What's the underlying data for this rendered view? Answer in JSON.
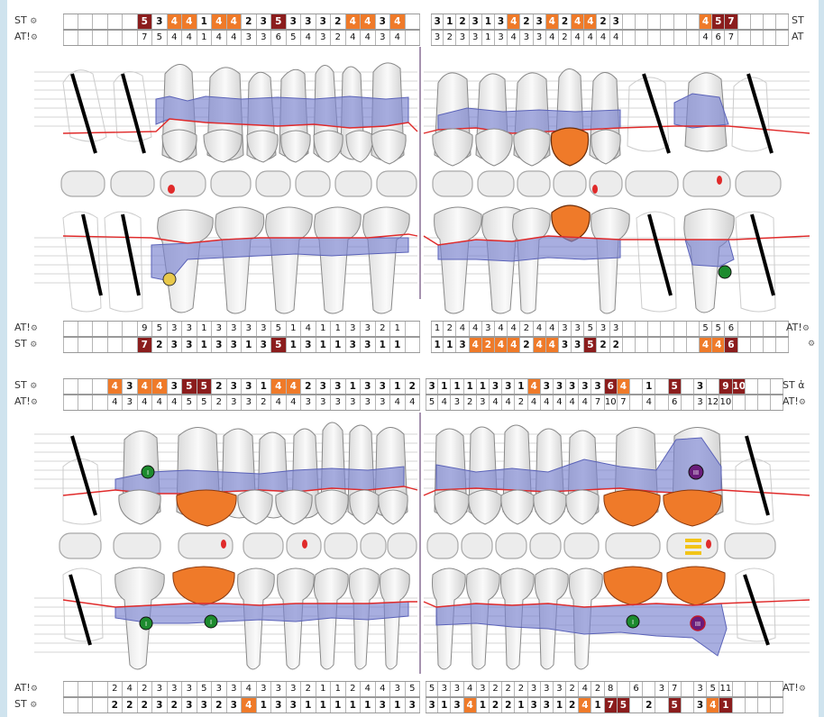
{
  "labels": {
    "st": "ST",
    "at": "AT!",
    "at_plain": "AT",
    "st_cut": "ST ἀ",
    "gear": "⚙"
  },
  "icons": {
    "settings": "gear-icon",
    "implant_markers": [
      "I",
      "III"
    ]
  },
  "colors": {
    "orange": "#ef7a29",
    "dark_red": "#8b1d1d",
    "gum_fill": "#7a82d0",
    "gum_line": "#e02a2a",
    "tooth_fill": "#efefef",
    "implant_green": "#1d8b2e",
    "purple": "#6a1c7a",
    "sidebar": "#cfe3ee"
  },
  "chart1": {
    "top_st": {
      "left": [
        [
          "",
          ""
        ],
        [
          "",
          ""
        ],
        [
          "",
          ""
        ],
        [
          "",
          ""
        ],
        [
          "",
          ""
        ],
        [
          "5",
          "d"
        ],
        [
          "3",
          ""
        ],
        [
          "4",
          "o"
        ],
        [
          "4",
          "o"
        ],
        [
          "1",
          ""
        ],
        [
          "4",
          "o"
        ],
        [
          "4",
          "o"
        ],
        [
          "2",
          ""
        ],
        [
          "3",
          ""
        ],
        [
          "5",
          "d"
        ],
        [
          "3",
          ""
        ],
        [
          "3",
          ""
        ],
        [
          "3",
          ""
        ],
        [
          "2",
          ""
        ],
        [
          "4",
          "o"
        ],
        [
          "4",
          "o"
        ],
        [
          "3",
          ""
        ],
        [
          "4",
          "o"
        ],
        [
          "",
          ""
        ]
      ],
      "right": [
        [
          "3",
          ""
        ],
        [
          "1",
          ""
        ],
        [
          "2",
          ""
        ],
        [
          "3",
          ""
        ],
        [
          "1",
          ""
        ],
        [
          "3",
          ""
        ],
        [
          "4",
          "o"
        ],
        [
          "2",
          ""
        ],
        [
          "3",
          ""
        ],
        [
          "4",
          "o"
        ],
        [
          "2",
          ""
        ],
        [
          "4",
          "o"
        ],
        [
          "4",
          "o"
        ],
        [
          "2",
          ""
        ],
        [
          "3",
          ""
        ],
        [
          "",
          ""
        ],
        [
          "",
          ""
        ],
        [
          "",
          ""
        ],
        [
          "",
          ""
        ],
        [
          "",
          ""
        ],
        [
          "",
          ""
        ],
        [
          "4",
          "o"
        ],
        [
          "5",
          "d"
        ],
        [
          "7",
          "d"
        ],
        [
          "",
          ""
        ],
        [
          "",
          ""
        ],
        [
          "",
          ""
        ],
        [
          "",
          ""
        ]
      ]
    },
    "top_at": {
      "left": [
        "",
        "",
        "",
        "",
        "",
        "7",
        "5",
        "4",
        "4",
        "1",
        "4",
        "4",
        "3",
        "3",
        "6",
        "5",
        "4",
        "3",
        "2",
        "4",
        "4",
        "3",
        "4",
        ""
      ],
      "right": [
        "3",
        "2",
        "3",
        "3",
        "1",
        "3",
        "4",
        "3",
        "3",
        "4",
        "2",
        "4",
        "4",
        "4",
        "4",
        "",
        "",
        "",
        "",
        "",
        "",
        "4",
        "6",
        "7",
        "",
        "",
        "",
        ""
      ]
    },
    "bottom_at": {
      "left": [
        "",
        "",
        "",
        "",
        "",
        "9",
        "5",
        "3",
        "3",
        "1",
        "3",
        "3",
        "3",
        "3",
        "5",
        "1",
        "4",
        "1",
        "1",
        "3",
        "3",
        "2",
        "1",
        ""
      ],
      "right": [
        "1",
        "2",
        "4",
        "4",
        "3",
        "4",
        "4",
        "2",
        "4",
        "4",
        "3",
        "3",
        "5",
        "3",
        "3",
        "",
        "",
        "",
        "",
        "",
        "",
        "5",
        "5",
        "6",
        "",
        "",
        "",
        ""
      ]
    },
    "bottom_st": {
      "left": [
        [
          "",
          ""
        ],
        [
          "",
          ""
        ],
        [
          "",
          ""
        ],
        [
          "",
          ""
        ],
        [
          "",
          ""
        ],
        [
          "7",
          "d"
        ],
        [
          "2",
          ""
        ],
        [
          "3",
          ""
        ],
        [
          "3",
          ""
        ],
        [
          "1",
          ""
        ],
        [
          "3",
          ""
        ],
        [
          "3",
          ""
        ],
        [
          "1",
          ""
        ],
        [
          "3",
          ""
        ],
        [
          "5",
          "d"
        ],
        [
          "1",
          ""
        ],
        [
          "3",
          ""
        ],
        [
          "1",
          ""
        ],
        [
          "1",
          ""
        ],
        [
          "3",
          ""
        ],
        [
          "3",
          ""
        ],
        [
          "1",
          ""
        ],
        [
          "1",
          ""
        ],
        [
          "",
          ""
        ]
      ],
      "right": [
        [
          "1",
          ""
        ],
        [
          "1",
          ""
        ],
        [
          "3",
          ""
        ],
        [
          "4",
          "o"
        ],
        [
          "2",
          "o"
        ],
        [
          "4",
          "o"
        ],
        [
          "4",
          "o"
        ],
        [
          "2",
          ""
        ],
        [
          "4",
          "o"
        ],
        [
          "4",
          "o"
        ],
        [
          "3",
          ""
        ],
        [
          "3",
          ""
        ],
        [
          "5",
          "d"
        ],
        [
          "2",
          ""
        ],
        [
          "2",
          ""
        ],
        [
          "",
          ""
        ],
        [
          "",
          ""
        ],
        [
          "",
          ""
        ],
        [
          "",
          ""
        ],
        [
          "",
          ""
        ],
        [
          "",
          ""
        ],
        [
          "4",
          "o"
        ],
        [
          "4",
          "o"
        ],
        [
          "6",
          "d"
        ],
        [
          "",
          ""
        ],
        [
          "",
          ""
        ],
        [
          "",
          ""
        ],
        [
          "",
          ""
        ]
      ]
    }
  },
  "chart2": {
    "top_st": {
      "left": [
        [
          "",
          ""
        ],
        [
          "",
          ""
        ],
        [
          "",
          ""
        ],
        [
          "4",
          "o"
        ],
        [
          "3",
          ""
        ],
        [
          "4",
          "o"
        ],
        [
          "4",
          "o"
        ],
        [
          "3",
          ""
        ],
        [
          "5",
          "d"
        ],
        [
          "5",
          "d"
        ],
        [
          "2",
          ""
        ],
        [
          "3",
          ""
        ],
        [
          "3",
          ""
        ],
        [
          "1",
          ""
        ],
        [
          "4",
          "o"
        ],
        [
          "4",
          "o"
        ],
        [
          "2",
          ""
        ],
        [
          "3",
          ""
        ],
        [
          "3",
          ""
        ],
        [
          "1",
          ""
        ],
        [
          "3",
          ""
        ],
        [
          "3",
          ""
        ],
        [
          "1",
          ""
        ],
        [
          "2",
          ""
        ]
      ],
      "right": [
        [
          "3",
          ""
        ],
        [
          "1",
          ""
        ],
        [
          "1",
          ""
        ],
        [
          "1",
          ""
        ],
        [
          "1",
          ""
        ],
        [
          "3",
          ""
        ],
        [
          "3",
          ""
        ],
        [
          "1",
          ""
        ],
        [
          "4",
          "o"
        ],
        [
          "3",
          ""
        ],
        [
          "3",
          ""
        ],
        [
          "3",
          ""
        ],
        [
          "3",
          ""
        ],
        [
          "3",
          ""
        ],
        [
          "6",
          "d"
        ],
        [
          "4",
          "o"
        ],
        [
          "",
          ""
        ],
        [
          "1",
          ""
        ],
        [
          "",
          ""
        ],
        [
          "5",
          "d"
        ],
        [
          "",
          ""
        ],
        [
          "3",
          ""
        ],
        [
          "",
          ""
        ],
        [
          "9",
          "d"
        ],
        [
          "10",
          "d"
        ],
        [
          "",
          ""
        ],
        [
          "",
          ""
        ],
        [
          "",
          ""
        ]
      ]
    },
    "top_at": {
      "left": [
        "",
        "",
        "",
        "4",
        "3",
        "4",
        "4",
        "4",
        "5",
        "5",
        "2",
        "3",
        "3",
        "2",
        "4",
        "4",
        "3",
        "3",
        "3",
        "3",
        "3",
        "3",
        "4",
        "4"
      ],
      "right": [
        "5",
        "4",
        "3",
        "2",
        "3",
        "4",
        "4",
        "2",
        "4",
        "4",
        "4",
        "4",
        "4",
        "7",
        "10",
        "7",
        "",
        "4",
        "",
        "6",
        "",
        "3",
        "12",
        "10",
        "",
        "",
        "",
        ""
      ]
    },
    "bottom_at": {
      "left": [
        "",
        "",
        "",
        "2",
        "4",
        "2",
        "3",
        "3",
        "3",
        "5",
        "3",
        "3",
        "4",
        "3",
        "3",
        "3",
        "2",
        "1",
        "1",
        "2",
        "4",
        "4",
        "3",
        "5"
      ],
      "right": [
        "5",
        "3",
        "3",
        "4",
        "3",
        "2",
        "2",
        "2",
        "3",
        "3",
        "3",
        "2",
        "4",
        "2",
        "8",
        "",
        "6",
        "",
        "3",
        "7",
        "",
        "3",
        "5",
        "11",
        "",
        "",
        "",
        ""
      ]
    },
    "bottom_st": {
      "left": [
        [
          "",
          ""
        ],
        [
          "",
          ""
        ],
        [
          "",
          ""
        ],
        [
          "2",
          ""
        ],
        [
          "2",
          ""
        ],
        [
          "2",
          ""
        ],
        [
          "3",
          ""
        ],
        [
          "2",
          ""
        ],
        [
          "3",
          ""
        ],
        [
          "3",
          ""
        ],
        [
          "2",
          ""
        ],
        [
          "3",
          ""
        ],
        [
          "4",
          "o"
        ],
        [
          "1",
          ""
        ],
        [
          "3",
          ""
        ],
        [
          "3",
          ""
        ],
        [
          "1",
          ""
        ],
        [
          "1",
          ""
        ],
        [
          "1",
          ""
        ],
        [
          "1",
          ""
        ],
        [
          "1",
          ""
        ],
        [
          "3",
          ""
        ],
        [
          "1",
          ""
        ],
        [
          "3",
          ""
        ]
      ],
      "right": [
        [
          "3",
          ""
        ],
        [
          "1",
          ""
        ],
        [
          "3",
          ""
        ],
        [
          "4",
          "o"
        ],
        [
          "1",
          ""
        ],
        [
          "2",
          ""
        ],
        [
          "2",
          ""
        ],
        [
          "1",
          ""
        ],
        [
          "3",
          ""
        ],
        [
          "3",
          ""
        ],
        [
          "1",
          ""
        ],
        [
          "2",
          ""
        ],
        [
          "4",
          "o"
        ],
        [
          "1",
          ""
        ],
        [
          "7",
          "d"
        ],
        [
          "5",
          "d"
        ],
        [
          "",
          ""
        ],
        [
          "2",
          ""
        ],
        [
          "",
          ""
        ],
        [
          "5",
          "d"
        ],
        [
          "",
          ""
        ],
        [
          "3",
          ""
        ],
        [
          "4",
          "o"
        ],
        [
          "1 0",
          "d"
        ],
        [
          "",
          ""
        ],
        [
          "",
          ""
        ],
        [
          "",
          ""
        ],
        [
          "",
          ""
        ]
      ]
    }
  }
}
